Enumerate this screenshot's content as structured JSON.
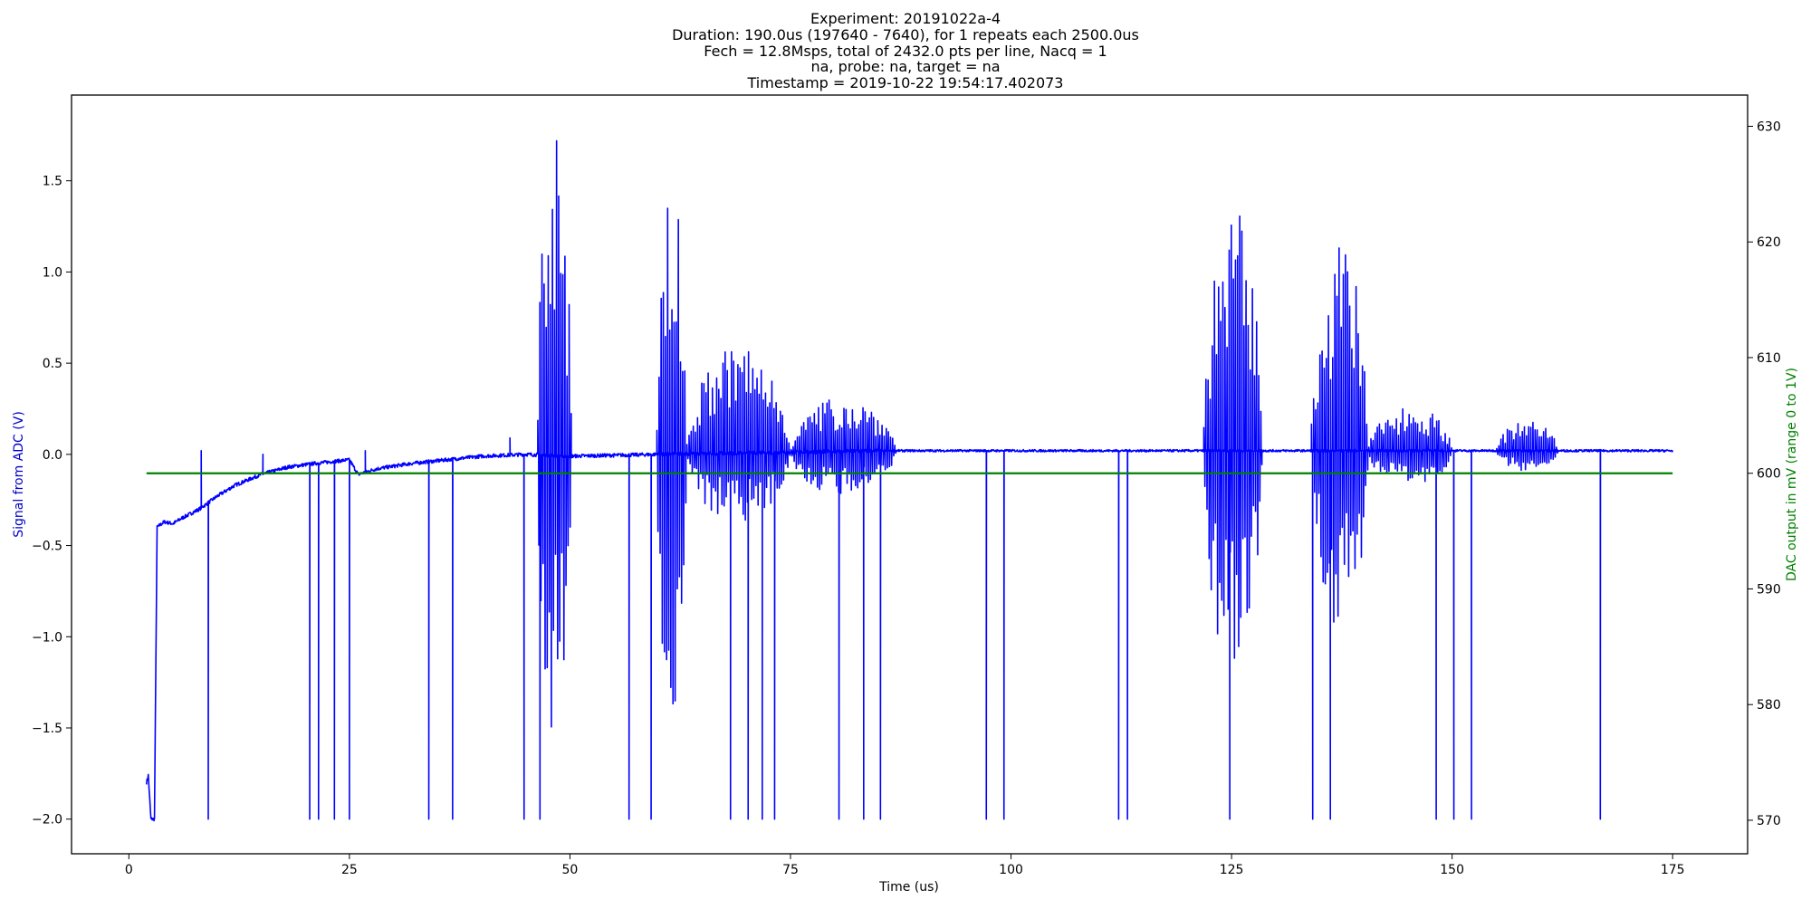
{
  "chart_data": {
    "type": "line",
    "title_lines": [
      "Experiment: 20191022a-4",
      "Duration: 190.0us (197640 - 7640), for 1 repeats each 2500.0us",
      "Fech = 12.8Msps, total of 2432.0 pts per line, Nacq = 1",
      "na, probe: na, target = na",
      "Timestamp = 2019-10-22 19:54:17.402073"
    ],
    "xlabel": "Time (us)",
    "ylabel_left": "Signal from ADC (V)",
    "ylabel_right": "DAC output in mV (range 0 to 1V)",
    "xlim": [
      -6.5,
      183.5
    ],
    "ylim_left": [
      -2.19,
      1.97
    ],
    "ylim_right": [
      567.1,
      632.7
    ],
    "x_ticks": [
      0,
      25,
      50,
      75,
      100,
      125,
      150,
      175
    ],
    "x_tick_labels": [
      "0",
      "25",
      "50",
      "75",
      "100",
      "125",
      "150",
      "175"
    ],
    "y_left_ticks": [
      -2.0,
      -1.5,
      -1.0,
      -0.5,
      0.0,
      0.5,
      1.0,
      1.5
    ],
    "y_left_tick_labels": [
      "−2.0",
      "−1.5",
      "−1.0",
      "−0.5",
      "0.0",
      "0.5",
      "1.0",
      "1.5"
    ],
    "y_right_ticks": [
      570,
      580,
      590,
      600,
      610,
      620,
      630
    ],
    "y_right_tick_labels": [
      "570",
      "580",
      "590",
      "600",
      "610",
      "620",
      "630"
    ],
    "grid": false,
    "series": [
      {
        "axis": "left",
        "color": "#0000ff",
        "baseline": [
          [
            2.0,
            -1.8
          ],
          [
            2.2,
            -1.76
          ],
          [
            2.5,
            -2.0
          ],
          [
            2.9,
            -2.0
          ],
          [
            3.2,
            -0.4
          ],
          [
            4,
            -0.37
          ],
          [
            5,
            -0.38
          ],
          [
            6,
            -0.35
          ],
          [
            8,
            -0.3
          ],
          [
            10,
            -0.23
          ],
          [
            12,
            -0.17
          ],
          [
            15,
            -0.11
          ],
          [
            18,
            -0.07
          ],
          [
            21,
            -0.05
          ],
          [
            25,
            -0.03
          ],
          [
            26,
            -0.11
          ],
          [
            28,
            -0.08
          ],
          [
            32,
            -0.05
          ],
          [
            36,
            -0.03
          ],
          [
            40,
            -0.01
          ],
          [
            45,
            0.0
          ],
          [
            50,
            -0.01
          ],
          [
            55,
            -0.005
          ],
          [
            60,
            0.0
          ],
          [
            85,
            0.02
          ],
          [
            175,
            0.02
          ]
        ],
        "spikes_down": [
          9.0,
          20.5,
          21.5,
          23.3,
          25.0,
          34.0,
          36.7,
          44.8,
          46.6,
          56.7,
          59.2,
          68.2,
          70.2,
          71.8,
          73.2,
          80.5,
          83.3,
          85.2,
          97.2,
          99.2,
          112.2,
          113.2,
          124.8,
          134.2,
          136.2,
          148.2,
          150.2,
          152.2,
          166.8
        ],
        "spikes_up": [
          [
            8.2,
            0.02
          ],
          [
            15.2,
            0.0
          ],
          [
            26.8,
            0.02
          ],
          [
            43.2,
            0.09
          ]
        ],
        "bursts": [
          {
            "start": 46.3,
            "end": 50.2,
            "peak": 1.8,
            "trough": -1.52
          },
          {
            "start": 59.8,
            "end": 63.2,
            "peak": 1.5,
            "trough": -1.5
          },
          {
            "start": 63.2,
            "end": 75.0,
            "peak": 0.6,
            "trough": -0.38
          },
          {
            "start": 75.0,
            "end": 87.0,
            "peak": 0.3,
            "trough": -0.24
          },
          {
            "start": 121.8,
            "end": 128.5,
            "peak": 1.33,
            "trough": -1.24
          },
          {
            "start": 134.0,
            "end": 140.5,
            "peak": 1.15,
            "trough": -1.0
          },
          {
            "start": 140.5,
            "end": 150.0,
            "peak": 0.25,
            "trough": -0.2
          },
          {
            "start": 155.0,
            "end": 162.0,
            "peak": 0.16,
            "trough": -0.11
          }
        ]
      },
      {
        "axis": "right",
        "color": "#008000",
        "points": [
          [
            2.0,
            600.0
          ],
          [
            175.0,
            600.0
          ]
        ]
      }
    ]
  }
}
